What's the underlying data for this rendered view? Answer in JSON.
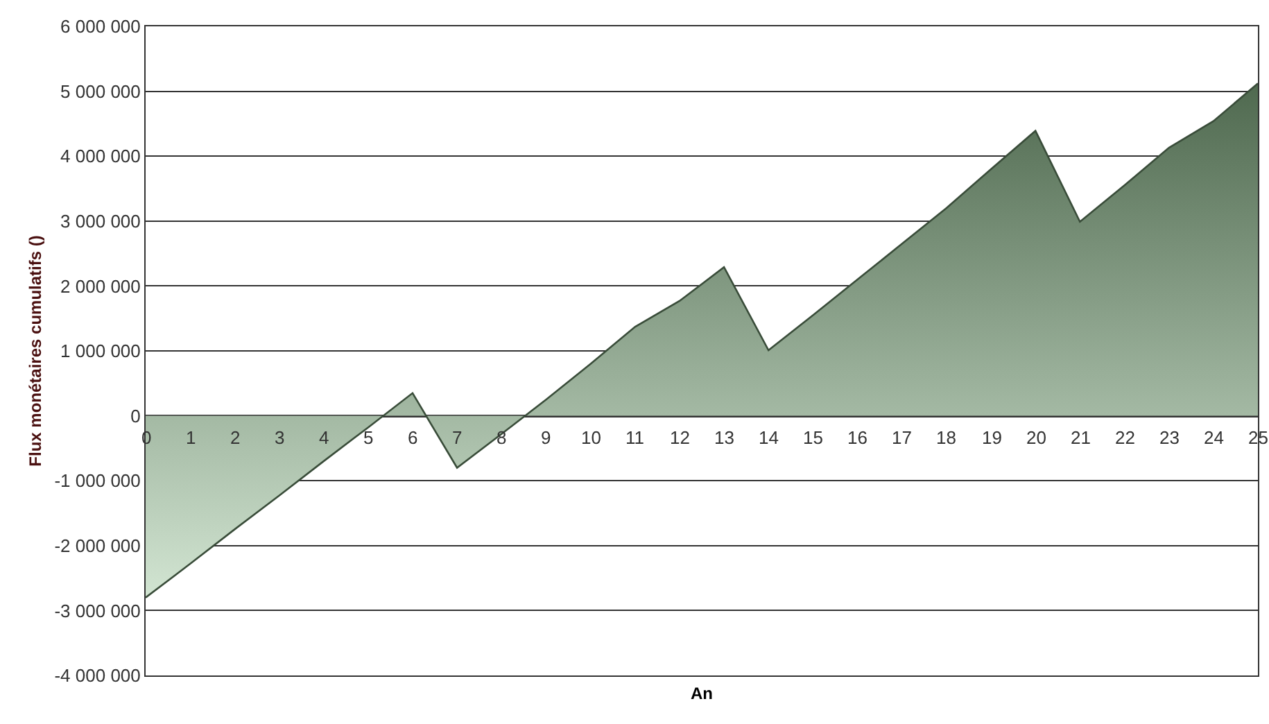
{
  "chart_data": {
    "type": "area",
    "xlabel": "An",
    "ylabel": "Flux monétaires cumulatifs ()",
    "x": [
      0,
      1,
      2,
      3,
      4,
      5,
      6,
      7,
      8,
      9,
      10,
      11,
      12,
      13,
      14,
      15,
      16,
      17,
      18,
      19,
      20,
      21,
      22,
      23,
      24,
      25
    ],
    "series": [
      {
        "color": "#8fbf8f",
        "values": [
          -2800000,
          -2280000,
          -1750000,
          -1230000,
          -700000,
          -180000,
          350000,
          -800000,
          -280000,
          250000,
          800000,
          1370000,
          1770000,
          2290000,
          1010000,
          1550000,
          2100000,
          2650000,
          3200000,
          3800000,
          4390000,
          2990000,
          3550000,
          4130000,
          4540000,
          5120000
        ]
      }
    ],
    "xlim": [
      0,
      25
    ],
    "xticks": [
      0,
      1,
      2,
      3,
      4,
      5,
      6,
      7,
      8,
      9,
      10,
      11,
      12,
      13,
      14,
      15,
      16,
      17,
      18,
      19,
      20,
      21,
      22,
      23,
      24,
      25
    ],
    "ylim": [
      -4000000,
      6000000
    ],
    "yticks": [
      {
        "value": -4000000,
        "label": "-4 000 000"
      },
      {
        "value": -3000000,
        "label": "-3 000 000"
      },
      {
        "value": -2000000,
        "label": "-2 000 000"
      },
      {
        "value": -1000000,
        "label": "-1 000 000"
      },
      {
        "value": 0,
        "label": "0"
      },
      {
        "value": 1000000,
        "label": "1 000 000"
      },
      {
        "value": 2000000,
        "label": "2 000 000"
      },
      {
        "value": 3000000,
        "label": "3 000 000"
      },
      {
        "value": 4000000,
        "label": "4 000 000"
      },
      {
        "value": 5000000,
        "label": "5 000 000"
      },
      {
        "value": 6000000,
        "label": "6 000 000"
      }
    ],
    "grid": "y",
    "legend": false
  }
}
